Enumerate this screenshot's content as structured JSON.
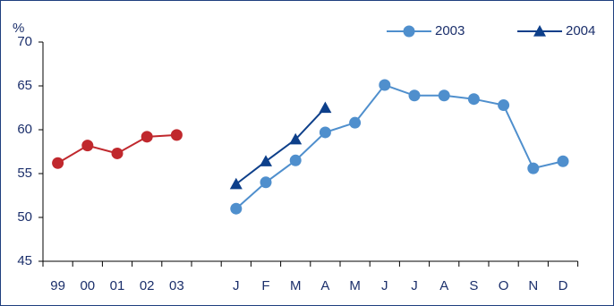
{
  "chart_data": {
    "type": "line",
    "y_label": "%",
    "categories": [
      "99",
      "00",
      "01",
      "02",
      "03",
      null,
      "J",
      "F",
      "M",
      "A",
      "M",
      "J",
      "J",
      "A",
      "S",
      "O",
      "N",
      "D"
    ],
    "series": [
      {
        "color": "#c0282d",
        "marker": "circle",
        "values": [
          56.2,
          58.2,
          57.3,
          59.2,
          59.4,
          null,
          null,
          null,
          null,
          null,
          null,
          null,
          null,
          null,
          null,
          null,
          null,
          null
        ]
      },
      {
        "name": "2003",
        "color": "#4f8fcd",
        "marker": "circle",
        "values": [
          null,
          null,
          null,
          null,
          null,
          null,
          51.0,
          54.0,
          56.5,
          59.7,
          60.8,
          65.1,
          63.9,
          63.9,
          63.5,
          62.8,
          55.6,
          56.4
        ]
      },
      {
        "name": "2004",
        "color": "#0d3f8a",
        "marker": "triangle",
        "values": [
          null,
          null,
          null,
          null,
          null,
          null,
          53.8,
          56.4,
          58.9,
          62.5,
          null,
          null,
          null,
          null,
          null,
          null,
          null,
          null
        ]
      }
    ],
    "ylim": [
      45,
      70
    ],
    "yticks": [
      45,
      50,
      55,
      60,
      65,
      70
    ],
    "grid": false,
    "legend": "top-right"
  }
}
